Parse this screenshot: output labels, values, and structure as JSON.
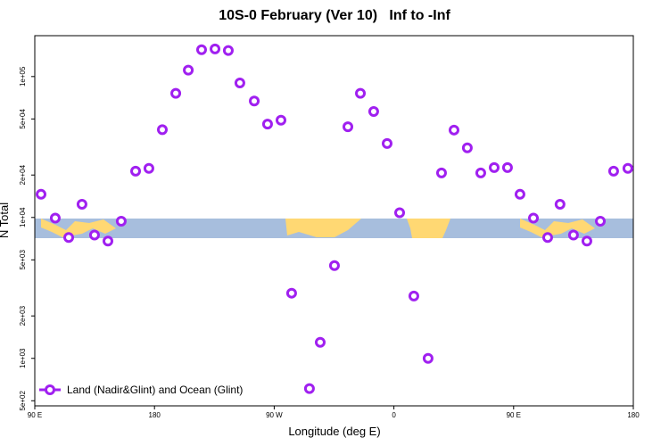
{
  "chart_data": {
    "type": "scatter",
    "title": "10S-0 February (Ver 10)   Inf to -Inf",
    "x_label": "Longitude (deg E)",
    "y_label": "N Total",
    "yscale": "log",
    "xlim": [
      90,
      540
    ],
    "ylim": [
      460,
      195000
    ],
    "xticks": [
      {
        "value": 90,
        "label": "90 E"
      },
      {
        "value": 180,
        "label": "180"
      },
      {
        "value": 270,
        "label": "90 W"
      },
      {
        "value": 360,
        "label": "0"
      },
      {
        "value": 450,
        "label": "90 E"
      },
      {
        "value": 540,
        "label": "180"
      }
    ],
    "yticks": [
      {
        "value": 500,
        "label": "5e+02"
      },
      {
        "value": 1000,
        "label": "1e+03"
      },
      {
        "value": 2000,
        "label": "2e+03"
      },
      {
        "value": 5000,
        "label": "5e+03"
      },
      {
        "value": 10000,
        "label": "1e+04"
      },
      {
        "value": 20000,
        "label": "2e+04"
      },
      {
        "value": 50000,
        "label": "5e+04"
      },
      {
        "value": 100000,
        "label": "1e+05"
      }
    ],
    "legend_position": "bottom-left",
    "series": [
      {
        "name": "Land (Nadir&Glint) and Ocean (Glint)",
        "color": "#a020f0",
        "x": [
          94.7,
          105.4,
          115.5,
          125.5,
          134.9,
          145.0,
          155.0,
          165.8,
          175.8,
          185.9,
          196.0,
          205.4,
          215.4,
          225.5,
          235.5,
          244.2,
          255.0,
          265.0,
          275.1,
          283.1,
          296.5,
          304.6,
          315.3,
          325.4,
          334.8,
          344.8,
          354.9,
          364.3,
          375.0,
          385.7,
          395.8,
          405.2,
          415.2,
          425.3,
          435.4,
          445.4,
          454.8,
          464.9,
          475.6,
          484.9,
          495.0,
          505.1,
          515.2,
          525.2,
          535.9
        ],
        "values": [
          14600,
          9900,
          7200,
          12400,
          7500,
          6800,
          9400,
          21300,
          22300,
          42000,
          76000,
          111000,
          155000,
          157000,
          153000,
          90000,
          67000,
          46000,
          49000,
          2900,
          610,
          1300,
          4550,
          44000,
          76000,
          56500,
          33500,
          10800,
          2770,
          1000,
          20700,
          41700,
          31200,
          20700,
          22600,
          22600,
          14600,
          9900,
          7200,
          12400,
          7500,
          6800,
          9400,
          21300,
          22300
        ]
      }
    ]
  }
}
